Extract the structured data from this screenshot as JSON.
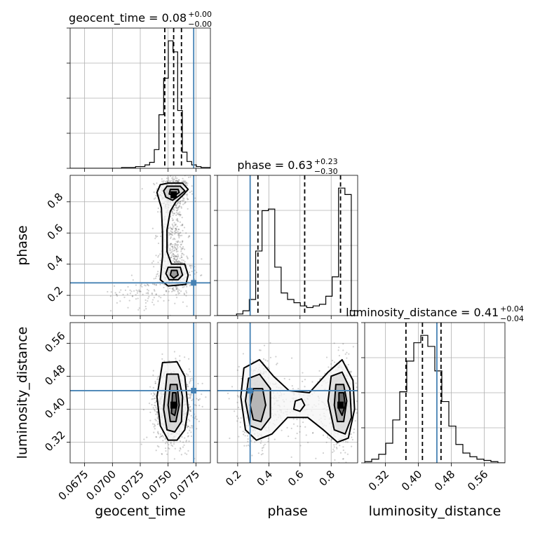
{
  "chart_data": {
    "type": "corner",
    "parameters": [
      "geocent_time",
      "phase",
      "luminosity_distance"
    ],
    "axis_labels": [
      "geocent_time",
      "phase",
      "luminosity_distance"
    ],
    "titles": [
      {
        "main": "geocent_time = 0.08",
        "sup": "+0.00",
        "sub": "−0.00"
      },
      {
        "main": "phase = 0.63",
        "sup": "+0.23",
        "sub": "−0.30"
      },
      {
        "main": "luminosity_distance = 0.41",
        "sup": "+0.04",
        "sub": "−0.04"
      }
    ],
    "ranges": [
      [
        0.0662,
        0.0788
      ],
      [
        0.07,
        0.97
      ],
      [
        0.27,
        0.61
      ]
    ],
    "ticks": [
      {
        "values": [
          0.0675,
          0.07,
          0.0725,
          0.075,
          0.0775
        ],
        "labels": [
          "0.0675",
          "0.0700",
          "0.0725",
          "0.0750",
          "0.0775"
        ]
      },
      {
        "values": [
          0.2,
          0.4,
          0.6,
          0.8
        ],
        "labels": [
          "0.2",
          "0.4",
          "0.6",
          "0.8"
        ]
      },
      {
        "values": [
          0.32,
          0.4,
          0.48,
          0.56
        ],
        "labels": [
          "0.32",
          "0.40",
          "0.48",
          "0.56"
        ]
      }
    ],
    "truths": [
      0.0773,
      0.28,
      0.445
    ],
    "quantiles": [
      [
        0.0747,
        0.0755,
        0.0762
      ],
      [
        0.33,
        0.63,
        0.86
      ],
      [
        0.37,
        0.41,
        0.455
      ]
    ],
    "histograms": [
      {
        "bin_edges_range": [
          0.0662,
          0.0788
        ],
        "counts": [
          0,
          0,
          0,
          0,
          0,
          0,
          0,
          0,
          0,
          0,
          0,
          1,
          1,
          1,
          2,
          2,
          4,
          7,
          22,
          63,
          106,
          150,
          137,
          68,
          19,
          8,
          4,
          2,
          1,
          1
        ]
      },
      {
        "bin_edges_range": [
          0.07,
          0.97
        ],
        "counts": [
          0,
          0,
          0,
          1,
          3,
          10,
          40,
          65,
          66,
          30,
          14,
          10,
          8,
          6,
          5,
          6,
          7,
          12,
          24,
          79,
          75,
          3
        ]
      },
      {
        "bin_edges_range": [
          0.27,
          0.61
        ],
        "counts": [
          1,
          3,
          7,
          16,
          35,
          58,
          83,
          98,
          104,
          95,
          75,
          50,
          30,
          15,
          8,
          5,
          3,
          2,
          1,
          0
        ]
      }
    ],
    "scatter_clusters": [
      {
        "pair": [
          0,
          1
        ],
        "blobs": [
          {
            "cx": 0.0755,
            "cy": 0.86,
            "sx": 0.0007,
            "sy": 0.05,
            "n": 500
          },
          {
            "cx": 0.0756,
            "cy": 0.34,
            "sx": 0.0008,
            "sy": 0.07,
            "n": 400
          },
          {
            "cx": 0.0755,
            "cy": 0.6,
            "sx": 0.0006,
            "sy": 0.12,
            "n": 250
          },
          {
            "cx": 0.0725,
            "cy": 0.22,
            "sx": 0.0013,
            "sy": 0.05,
            "n": 80
          }
        ]
      },
      {
        "pair": [
          0,
          2
        ],
        "blobs": [
          {
            "cx": 0.0755,
            "cy": 0.41,
            "sx": 0.0009,
            "sy": 0.045,
            "n": 1000
          }
        ]
      },
      {
        "pair": [
          1,
          2
        ],
        "blobs": [
          {
            "cx": 0.33,
            "cy": 0.415,
            "sx": 0.06,
            "sy": 0.05,
            "n": 550
          },
          {
            "cx": 0.86,
            "cy": 0.41,
            "sx": 0.045,
            "sy": 0.05,
            "n": 550
          },
          {
            "cx": 0.6,
            "cy": 0.41,
            "sx": 0.15,
            "sy": 0.04,
            "n": 200
          }
        ]
      }
    ],
    "contours": [
      {
        "pair": [
          0,
          1
        ],
        "levels": [
          [
            [
              0.075,
              0.92
            ],
            [
              0.0763,
              0.92
            ],
            [
              0.0768,
              0.88
            ],
            [
              0.0763,
              0.84
            ],
            [
              0.0757,
              0.8
            ],
            [
              0.0752,
              0.74
            ],
            [
              0.0749,
              0.62
            ],
            [
              0.0749,
              0.48
            ],
            [
              0.0753,
              0.4
            ],
            [
              0.0765,
              0.4
            ],
            [
              0.0768,
              0.33
            ],
            [
              0.0766,
              0.27
            ],
            [
              0.075,
              0.26
            ],
            [
              0.0743,
              0.3
            ],
            [
              0.0745,
              0.45
            ],
            [
              0.0745,
              0.6
            ],
            [
              0.0744,
              0.76
            ],
            [
              0.074,
              0.86
            ],
            [
              0.0743,
              0.91
            ]
          ],
          [
            [
              0.0749,
              0.9
            ],
            [
              0.0761,
              0.9
            ],
            [
              0.0765,
              0.87
            ],
            [
              0.076,
              0.84
            ],
            [
              0.0754,
              0.81
            ],
            [
              0.0748,
              0.83
            ],
            [
              0.0746,
              0.87
            ]
          ],
          [
            [
              0.0752,
              0.88
            ],
            [
              0.0759,
              0.88
            ],
            [
              0.076,
              0.86
            ],
            [
              0.0756,
              0.84
            ],
            [
              0.0751,
              0.85
            ]
          ],
          [
            [
              0.075,
              0.38
            ],
            [
              0.0761,
              0.38
            ],
            [
              0.0763,
              0.33
            ],
            [
              0.0759,
              0.3
            ],
            [
              0.0751,
              0.3
            ],
            [
              0.0748,
              0.34
            ]
          ],
          [
            [
              0.0753,
              0.36
            ],
            [
              0.0758,
              0.36
            ],
            [
              0.0759,
              0.33
            ],
            [
              0.0755,
              0.31
            ],
            [
              0.0752,
              0.33
            ]
          ]
        ]
      },
      {
        "pair": [
          0,
          2
        ],
        "levels": [
          [
            [
              0.0745,
              0.513
            ],
            [
              0.0758,
              0.515
            ],
            [
              0.0765,
              0.48
            ],
            [
              0.0768,
              0.4
            ],
            [
              0.0765,
              0.35
            ],
            [
              0.0758,
              0.325
            ],
            [
              0.075,
              0.325
            ],
            [
              0.0743,
              0.36
            ],
            [
              0.074,
              0.43
            ]
          ],
          [
            [
              0.0749,
              0.485
            ],
            [
              0.0759,
              0.485
            ],
            [
              0.0763,
              0.43
            ],
            [
              0.0762,
              0.37
            ],
            [
              0.0756,
              0.345
            ],
            [
              0.0749,
              0.35
            ],
            [
              0.0746,
              0.4
            ]
          ],
          [
            [
              0.0752,
              0.46
            ],
            [
              0.0758,
              0.46
            ],
            [
              0.076,
              0.41
            ],
            [
              0.0757,
              0.37
            ],
            [
              0.0752,
              0.37
            ],
            [
              0.075,
              0.41
            ]
          ],
          [
            [
              0.0754,
              0.44
            ],
            [
              0.0757,
              0.44
            ],
            [
              0.0758,
              0.41
            ],
            [
              0.0756,
              0.385
            ],
            [
              0.0753,
              0.39
            ]
          ]
        ]
      },
      {
        "pair": [
          1,
          2
        ],
        "levels": [
          [
            [
              0.24,
              0.5
            ],
            [
              0.34,
              0.52
            ],
            [
              0.43,
              0.48
            ],
            [
              0.53,
              0.445
            ],
            [
              0.66,
              0.44
            ],
            [
              0.78,
              0.49
            ],
            [
              0.87,
              0.52
            ],
            [
              0.94,
              0.47
            ],
            [
              0.95,
              0.4
            ],
            [
              0.91,
              0.33
            ],
            [
              0.84,
              0.32
            ],
            [
              0.75,
              0.35
            ],
            [
              0.65,
              0.38
            ],
            [
              0.52,
              0.38
            ],
            [
              0.42,
              0.34
            ],
            [
              0.32,
              0.325
            ],
            [
              0.25,
              0.35
            ],
            [
              0.22,
              0.43
            ]
          ],
          [
            [
              0.27,
              0.475
            ],
            [
              0.34,
              0.485
            ],
            [
              0.41,
              0.45
            ],
            [
              0.41,
              0.38
            ],
            [
              0.35,
              0.35
            ],
            [
              0.28,
              0.36
            ],
            [
              0.25,
              0.42
            ]
          ],
          [
            [
              0.3,
              0.45
            ],
            [
              0.36,
              0.45
            ],
            [
              0.38,
              0.41
            ],
            [
              0.35,
              0.37
            ],
            [
              0.3,
              0.375
            ],
            [
              0.28,
              0.41
            ]
          ],
          [
            [
              0.8,
              0.48
            ],
            [
              0.87,
              0.49
            ],
            [
              0.92,
              0.45
            ],
            [
              0.93,
              0.38
            ],
            [
              0.89,
              0.34
            ],
            [
              0.82,
              0.35
            ],
            [
              0.78,
              0.42
            ]
          ],
          [
            [
              0.83,
              0.46
            ],
            [
              0.88,
              0.46
            ],
            [
              0.9,
              0.42
            ],
            [
              0.88,
              0.37
            ],
            [
              0.84,
              0.37
            ],
            [
              0.82,
              0.41
            ]
          ],
          [
            [
              0.85,
              0.44
            ],
            [
              0.88,
              0.44
            ],
            [
              0.89,
              0.41
            ],
            [
              0.87,
              0.385
            ],
            [
              0.85,
              0.4
            ]
          ],
          [
            [
              0.57,
              0.42
            ],
            [
              0.61,
              0.425
            ],
            [
              0.63,
              0.41
            ],
            [
              0.6,
              0.395
            ],
            [
              0.56,
              0.4
            ]
          ]
        ]
      }
    ],
    "peaks": [
      {
        "pair": [
          0,
          1
        ],
        "points": [
          [
            0.0755,
            0.845
          ]
        ]
      },
      {
        "pair": [
          0,
          2
        ],
        "points": [
          [
            0.0755,
            0.41
          ]
        ]
      },
      {
        "pair": [
          1,
          2
        ],
        "points": [
          [
            0.86,
            0.41
          ]
        ]
      }
    ],
    "colors": {
      "truth": "#4682b4",
      "hist": "#000000",
      "grid": "#b0b0b0",
      "points": "#555555"
    }
  }
}
